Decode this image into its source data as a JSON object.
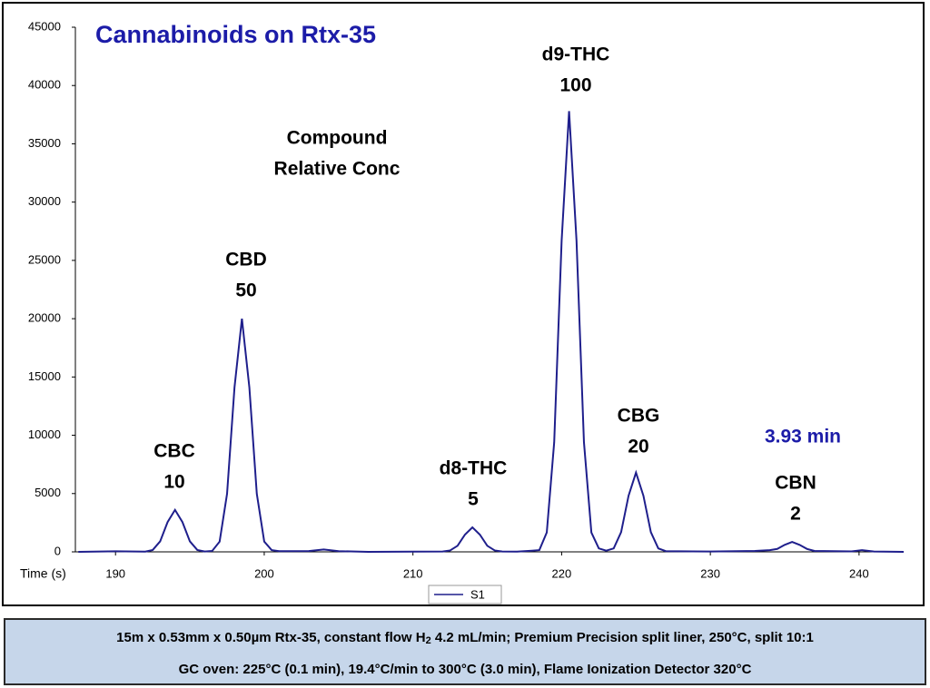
{
  "chart_data": {
    "type": "line",
    "title": "Cannabinoids on Rtx-35",
    "x_label": "Time (s)",
    "x": [
      187.5,
      190,
      192,
      192.5,
      193,
      193.5,
      194,
      194.5,
      195,
      195.5,
      196,
      196.5,
      197,
      197.5,
      198,
      198.5,
      199,
      199.5,
      200,
      200.5,
      201,
      203,
      204,
      205,
      207,
      210,
      212,
      212.5,
      213,
      213.5,
      214,
      214.5,
      215,
      215.5,
      216,
      217,
      218,
      218.5,
      219,
      219.5,
      220,
      220.5,
      221,
      221.5,
      222,
      222.5,
      223,
      223.5,
      224,
      224.5,
      225,
      225.5,
      226,
      226.5,
      227,
      230,
      233,
      234,
      234.5,
      235,
      235.5,
      236,
      236.5,
      237,
      239.5,
      240.2,
      241,
      243
    ],
    "series": [
      {
        "name": "S1",
        "color": "#1f1f8c",
        "values": [
          0,
          50,
          20,
          160,
          900,
          2550,
          3600,
          2550,
          900,
          160,
          30,
          80,
          880,
          4980,
          14100,
          20000,
          14100,
          4980,
          880,
          150,
          60,
          70,
          200,
          60,
          0,
          20,
          30,
          120,
          520,
          1480,
          2100,
          1480,
          520,
          120,
          30,
          20,
          100,
          150,
          1660,
          9410,
          26700,
          37800,
          26700,
          9410,
          1660,
          300,
          100,
          300,
          1690,
          4810,
          6800,
          4810,
          1690,
          300,
          60,
          30,
          80,
          150,
          250,
          600,
          850,
          600,
          250,
          80,
          40,
          150,
          30,
          0
        ]
      }
    ],
    "xlim": [
      187.3,
      243
    ],
    "ylim": [
      0,
      45000
    ],
    "xticks": [
      190,
      200,
      210,
      220,
      230,
      240
    ],
    "yticks": [
      0,
      5000,
      10000,
      15000,
      20000,
      25000,
      30000,
      35000,
      40000,
      45000
    ],
    "grid": false,
    "peaks": [
      {
        "name": "CBC",
        "conc": 10
      },
      {
        "name": "CBD",
        "conc": 50
      },
      {
        "name": "d8-THC",
        "conc": 5
      },
      {
        "name": "d9-THC",
        "conc": 100
      },
      {
        "name": "CBG",
        "conc": 20
      },
      {
        "name": "CBN",
        "conc": 2
      }
    ],
    "annotations": [
      "Compound",
      "Relative Conc",
      "3.93 min"
    ]
  },
  "footer": {
    "line1": [
      "15m x 0.53mm x 0.50µm Rtx-35,  constant flow H",
      "2",
      " 4.2 mL/min;  Premium Precision split liner, 250°C, split 10:1"
    ],
    "line2": "GC oven:  225°C (0.1 min), 19.4°C/min to 300°C (3.0 min), Flame Ionization Detector 320°C"
  }
}
